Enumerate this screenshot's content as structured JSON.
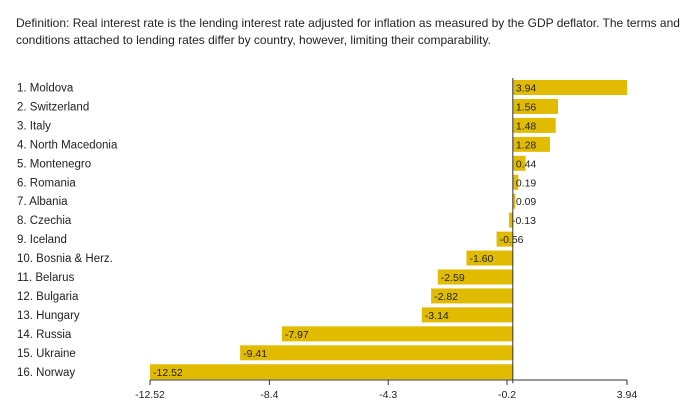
{
  "definition": "Definition: Real interest rate is the lending interest rate adjusted for inflation as measured by the GDP deflator. The terms and conditions attached to lending rates differ by country, however, limiting their comparability.",
  "colors": {
    "bar": "#e1bb00",
    "axis": "#333333"
  },
  "chart_data": {
    "type": "bar",
    "orientation": "horizontal",
    "title": "",
    "xlabel": "",
    "ylabel": "",
    "categories": [
      "1. Moldova",
      "2. Switzerland",
      "3. Italy",
      "4. North Macedonia",
      "5. Montenegro",
      "6. Romania",
      "7. Albania",
      "8. Czechia",
      "9. Iceland",
      "10. Bosnia & Herz.",
      "11. Belarus",
      "12. Bulgaria",
      "13. Hungary",
      "14. Russia",
      "15. Ukraine",
      "16. Norway"
    ],
    "values": [
      3.94,
      1.56,
      1.48,
      1.28,
      0.44,
      0.19,
      0.09,
      -0.13,
      -0.56,
      -1.6,
      -2.59,
      -2.82,
      -3.14,
      -7.97,
      -9.41,
      -12.52
    ],
    "value_labels": [
      "3.94",
      "1.56",
      "1.48",
      "1.28",
      "0.44",
      "0.19",
      "0.09",
      "-0.13",
      "-0.56",
      "-1.60",
      "-2.59",
      "-2.82",
      "-3.14",
      "-7.97",
      "-9.41",
      "-12.52"
    ],
    "xlim": [
      -12.52,
      3.94
    ],
    "xticks": [
      -12.52,
      -8.4,
      -4.3,
      -0.2,
      3.94
    ],
    "xtick_labels": [
      "-12.52",
      "-8.4",
      "-4.3",
      "-0.2",
      "3.94"
    ],
    "grid": false,
    "legend": "none"
  }
}
